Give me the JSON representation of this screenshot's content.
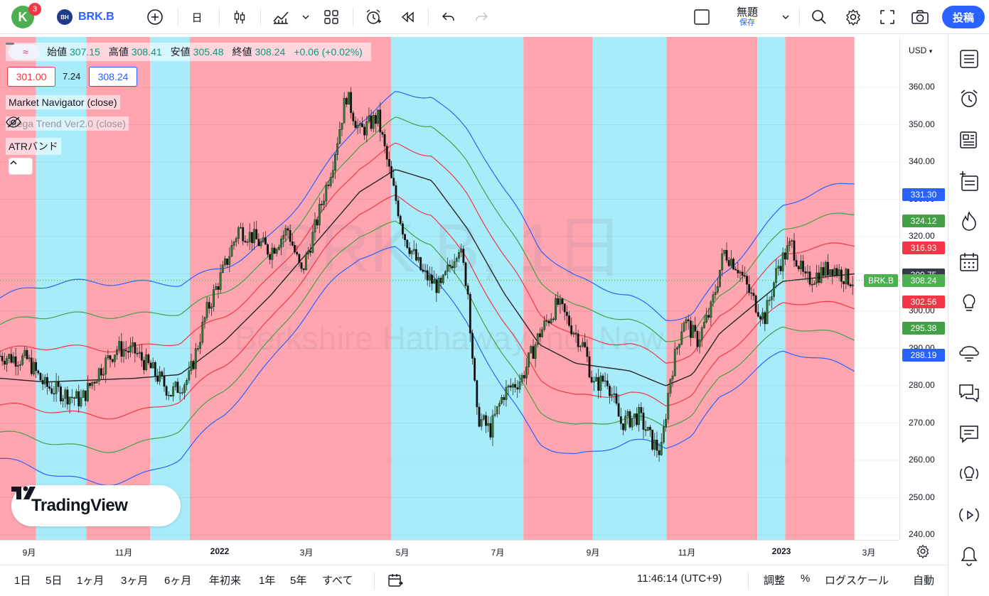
{
  "topbar": {
    "avatar_letter": "K",
    "notification_count": "3",
    "symbol_logo": "BH",
    "symbol": "BRK.B",
    "interval": "日",
    "layout_name": "無題",
    "save_label": "保存",
    "publish_label": "投稿"
  },
  "legend": {
    "open_label": "始値",
    "open": "307.15",
    "high_label": "高値",
    "high": "308.41",
    "low_label": "安値",
    "low": "305.48",
    "close_label": "終値",
    "close": "308.24",
    "change": "+0.06 (+0.02%)",
    "bid": "301.00",
    "spread": "7.24",
    "ask": "308.24",
    "indicators": [
      "Market Navigator (close)",
      "Mega Trend Ver2.0 (close)",
      "ATRバンド"
    ]
  },
  "watermark": {
    "symbol_line": "BRK.B, 1日",
    "name_line": "Berkshire Hathaway Inc. New"
  },
  "brand": "TradingView",
  "price_axis": {
    "currency": "USD",
    "ticks": [
      "360.00",
      "350.00",
      "340.00",
      "330.00",
      "320.00",
      "310.00",
      "300.00",
      "290.00",
      "280.00",
      "270.00",
      "260.00",
      "250.00",
      "240.00"
    ],
    "labels": [
      {
        "value": "331.30",
        "color": "#2962ff"
      },
      {
        "value": "324.12",
        "color": "#43a047"
      },
      {
        "value": "316.93",
        "color": "#f23645"
      },
      {
        "value": "309.75",
        "color": "#363a45"
      },
      {
        "value": "308.24",
        "color": "#4caf50"
      },
      {
        "value": "302.56",
        "color": "#f23645"
      },
      {
        "value": "295.38",
        "color": "#43a047"
      },
      {
        "value": "288.19",
        "color": "#2962ff"
      }
    ],
    "symbol_tag": "BRK.B"
  },
  "time_axis": {
    "ticks": [
      {
        "label": "9月",
        "bold": false
      },
      {
        "label": "11月",
        "bold": false
      },
      {
        "label": "2022",
        "bold": true
      },
      {
        "label": "3月",
        "bold": false
      },
      {
        "label": "5月",
        "bold": false
      },
      {
        "label": "7月",
        "bold": false
      },
      {
        "label": "9月",
        "bold": false
      },
      {
        "label": "11月",
        "bold": false
      },
      {
        "label": "2023",
        "bold": true
      },
      {
        "label": "3月",
        "bold": false
      }
    ]
  },
  "bottombar": {
    "ranges": [
      "1日",
      "5日",
      "1ヶ月",
      "3ヶ月",
      "6ヶ月",
      "年初来",
      "1年",
      "5年",
      "すべて"
    ],
    "time": "11:46:14 (UTC+9)",
    "adjust": "調整",
    "percent": "%",
    "log_scale": "ログスケール",
    "auto": "自動"
  },
  "chart_data": {
    "type": "candlestick",
    "symbol": "BRK.B",
    "interval": "1D",
    "ylim": [
      240,
      365
    ],
    "background_zones": [
      {
        "from": 0.0,
        "to": 0.04,
        "color": "red"
      },
      {
        "from": 0.04,
        "to": 0.096,
        "color": "cyan"
      },
      {
        "from": 0.096,
        "to": 0.167,
        "color": "red"
      },
      {
        "from": 0.167,
        "to": 0.211,
        "color": "cyan"
      },
      {
        "from": 0.211,
        "to": 0.435,
        "color": "red"
      },
      {
        "from": 0.435,
        "to": 0.582,
        "color": "cyan"
      },
      {
        "from": 0.582,
        "to": 0.659,
        "color": "red"
      },
      {
        "from": 0.659,
        "to": 0.741,
        "color": "cyan"
      },
      {
        "from": 0.741,
        "to": 0.842,
        "color": "red"
      },
      {
        "from": 0.842,
        "to": 0.873,
        "color": "cyan"
      },
      {
        "from": 0.873,
        "to": 0.95,
        "color": "red"
      }
    ],
    "price_path": [
      [
        0.0,
        288
      ],
      [
        0.03,
        287
      ],
      [
        0.05,
        280
      ],
      [
        0.07,
        278
      ],
      [
        0.09,
        276
      ],
      [
        0.11,
        284
      ],
      [
        0.13,
        290
      ],
      [
        0.15,
        289
      ],
      [
        0.17,
        284
      ],
      [
        0.19,
        278
      ],
      [
        0.21,
        282
      ],
      [
        0.23,
        300
      ],
      [
        0.25,
        312
      ],
      [
        0.265,
        322
      ],
      [
        0.28,
        320
      ],
      [
        0.3,
        316
      ],
      [
        0.32,
        322
      ],
      [
        0.335,
        310
      ],
      [
        0.35,
        322
      ],
      [
        0.37,
        340
      ],
      [
        0.385,
        358
      ],
      [
        0.4,
        348
      ],
      [
        0.42,
        352
      ],
      [
        0.435,
        335
      ],
      [
        0.45,
        320
      ],
      [
        0.47,
        310
      ],
      [
        0.49,
        306
      ],
      [
        0.51,
        318
      ],
      [
        0.52,
        306
      ],
      [
        0.53,
        272
      ],
      [
        0.545,
        268
      ],
      [
        0.56,
        278
      ],
      [
        0.58,
        282
      ],
      [
        0.6,
        294
      ],
      [
        0.62,
        302
      ],
      [
        0.635,
        296
      ],
      [
        0.65,
        290
      ],
      [
        0.66,
        280
      ],
      [
        0.675,
        282
      ],
      [
        0.69,
        270
      ],
      [
        0.71,
        272
      ],
      [
        0.725,
        265
      ],
      [
        0.735,
        262
      ],
      [
        0.745,
        282
      ],
      [
        0.76,
        298
      ],
      [
        0.775,
        292
      ],
      [
        0.79,
        300
      ],
      [
        0.805,
        316
      ],
      [
        0.82,
        312
      ],
      [
        0.835,
        304
      ],
      [
        0.85,
        298
      ],
      [
        0.865,
        312
      ],
      [
        0.88,
        318
      ],
      [
        0.895,
        308
      ],
      [
        0.91,
        310
      ],
      [
        0.925,
        312
      ],
      [
        0.94,
        309
      ],
      [
        0.95,
        308
      ]
    ],
    "bands": {
      "ma": [
        [
          0.0,
          282
        ],
        [
          0.05,
          281
        ],
        [
          0.15,
          282
        ],
        [
          0.2,
          283
        ],
        [
          0.25,
          292
        ],
        [
          0.3,
          304
        ],
        [
          0.35,
          318
        ],
        [
          0.4,
          332
        ],
        [
          0.44,
          338
        ],
        [
          0.48,
          335
        ],
        [
          0.52,
          322
        ],
        [
          0.56,
          305
        ],
        [
          0.6,
          291
        ],
        [
          0.64,
          286
        ],
        [
          0.7,
          284
        ],
        [
          0.74,
          280
        ],
        [
          0.77,
          283
        ],
        [
          0.8,
          294
        ],
        [
          0.84,
          302
        ],
        [
          0.87,
          308
        ],
        [
          0.95,
          310
        ]
      ],
      "atr_inner_up": 7.2,
      "atr_mid_up": 14.4,
      "atr_outer_up": 21.5
    }
  },
  "icons": {
    "topbar": [
      "add-symbol-icon",
      "candles-icon",
      "indicators-icon",
      "templates-icon",
      "alert-icon",
      "replay-icon",
      "undo-icon",
      "redo-icon",
      "layout-icon",
      "chevron-down-icon",
      "search-icon",
      "gear-icon",
      "fullscreen-icon",
      "camera-icon"
    ],
    "sidebar": [
      "watchlist-icon",
      "alarm-icon",
      "news-icon",
      "add-list-icon",
      "hot-icon",
      "calendar-icon",
      "idea-icon",
      "stream-icon",
      "chat-icon",
      "chat-alt-icon",
      "broadcast-icon",
      "play-icon",
      "bell-icon"
    ]
  }
}
